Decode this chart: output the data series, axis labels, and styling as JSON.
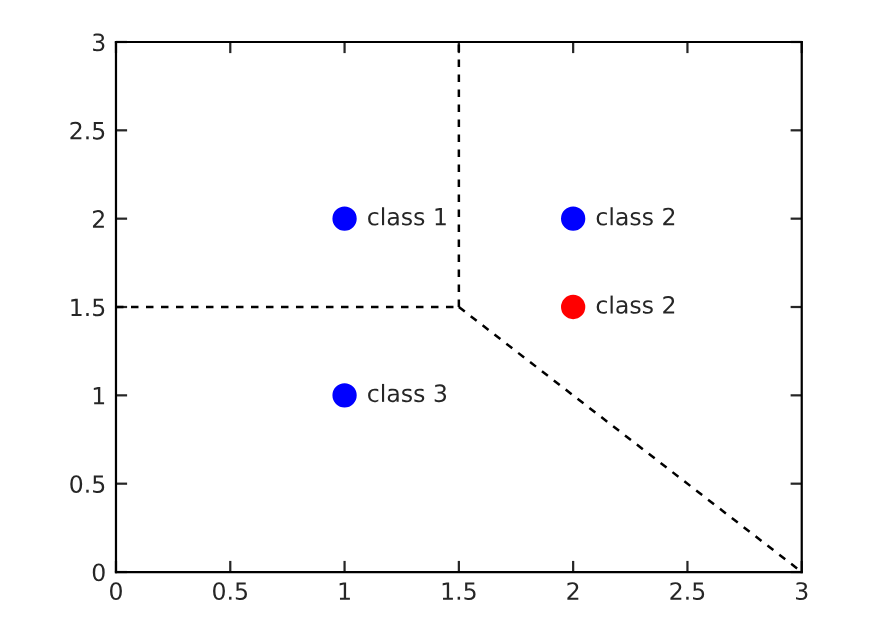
{
  "chart_data": {
    "type": "scatter",
    "series": [
      {
        "type": "scatter",
        "x": [
          1,
          2,
          2,
          1
        ],
        "values": [
          2,
          2,
          1.5,
          1
        ],
        "value_labels": [
          "class 1",
          "class 2",
          "class 2",
          "class 3"
        ],
        "colors": [
          "#0000ff",
          "#0000ff",
          "#ff0000",
          "#0000ff"
        ],
        "marker": "circle"
      },
      {
        "type": "line",
        "x": [
          0,
          1.5
        ],
        "values": [
          1.5,
          1.5
        ],
        "color": "#000000",
        "line_style": "dashed",
        "marker": "none"
      },
      {
        "type": "line",
        "x": [
          1.5,
          1.5
        ],
        "values": [
          1.5,
          3
        ],
        "color": "#000000",
        "line_style": "dashed",
        "marker": "none"
      },
      {
        "type": "line",
        "x": [
          1.5,
          3
        ],
        "values": [
          1.5,
          0
        ],
        "color": "#000000",
        "line_style": "dashed",
        "marker": "none"
      }
    ],
    "xlim": [
      0,
      3
    ],
    "ylim": [
      0,
      3
    ],
    "xticks": [
      0,
      0.5,
      1,
      1.5,
      2,
      2.5,
      3
    ],
    "yticks": [
      0,
      0.5,
      1,
      1.5,
      2,
      2.5,
      3
    ],
    "grid": false,
    "legend": false
  }
}
